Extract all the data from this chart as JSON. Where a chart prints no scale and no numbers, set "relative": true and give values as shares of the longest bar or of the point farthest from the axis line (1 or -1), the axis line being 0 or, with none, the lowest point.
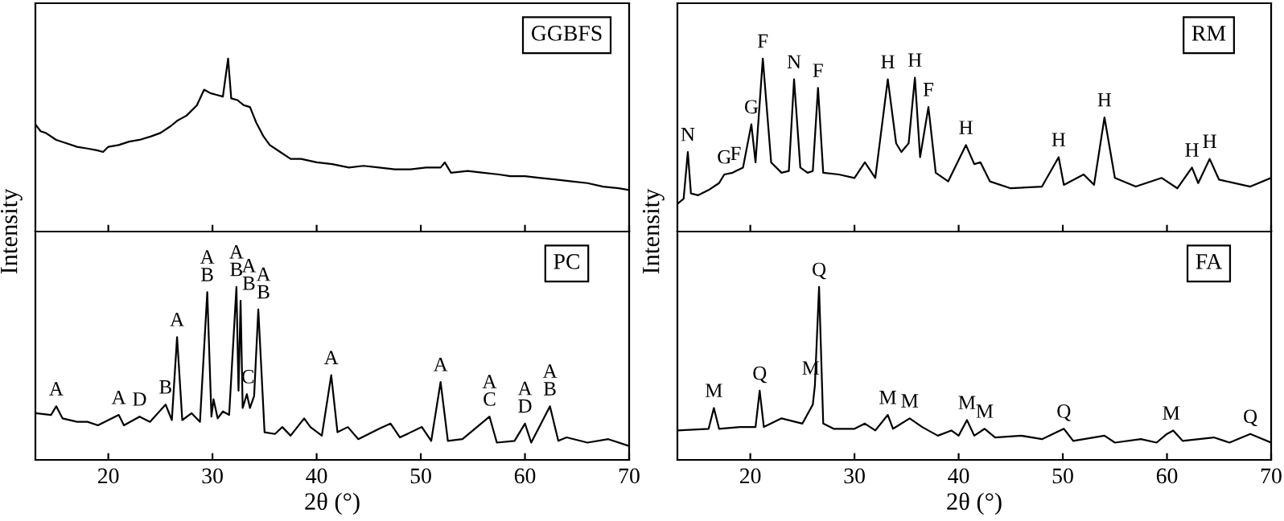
{
  "chart_data": [
    {
      "type": "line",
      "title": "GGBFS",
      "ylabel": "Intensity",
      "relative": true,
      "xlim": [
        13,
        70
      ],
      "xticks": [
        20,
        30,
        40,
        50,
        60,
        70
      ],
      "tick_labels": false,
      "x": [
        13,
        13.5,
        14,
        15,
        16,
        17,
        18,
        18.9,
        19.5,
        20,
        21,
        22,
        23,
        24.1,
        25,
        26,
        26.6,
        27.5,
        28.5,
        29.2,
        29.8,
        30.4,
        31,
        31.5,
        31.8,
        32.4,
        33,
        33.6,
        34.2,
        34.9,
        35.5,
        36.5,
        37.5,
        38.5,
        40,
        41.5,
        43.1,
        44.5,
        46,
        47.5,
        49,
        50.5,
        51.9,
        52.3,
        52.9,
        54.5,
        56,
        57.5,
        58.6,
        60,
        61.5,
        63,
        64.5,
        66,
        67.5,
        69,
        70
      ],
      "series": [
        {
          "color": "#000000",
          "values": [
            0.62,
            0.58,
            0.57,
            0.53,
            0.51,
            0.49,
            0.48,
            0.47,
            0.46,
            0.49,
            0.5,
            0.52,
            0.53,
            0.55,
            0.57,
            0.61,
            0.64,
            0.67,
            0.73,
            0.82,
            0.8,
            0.79,
            0.78,
            1.0,
            0.77,
            0.76,
            0.73,
            0.72,
            0.63,
            0.55,
            0.5,
            0.46,
            0.42,
            0.42,
            0.4,
            0.39,
            0.37,
            0.38,
            0.37,
            0.36,
            0.36,
            0.37,
            0.37,
            0.4,
            0.34,
            0.35,
            0.34,
            0.33,
            0.32,
            0.32,
            0.31,
            0.3,
            0.29,
            0.28,
            0.26,
            0.25,
            0.24
          ]
        }
      ]
    },
    {
      "type": "line",
      "title": "RM",
      "ylabel": "Intensity",
      "relative": true,
      "xlim": [
        13,
        70
      ],
      "xticks": [
        20,
        30,
        40,
        50,
        60,
        70
      ],
      "tick_labels": false,
      "x": [
        13,
        13.6,
        14,
        14.3,
        15,
        16,
        17,
        17.5,
        18.3,
        18.6,
        19.3,
        20.1,
        20.5,
        21.2,
        22,
        23,
        23.7,
        24.2,
        24.8,
        25.5,
        26,
        26.5,
        27,
        28.5,
        30,
        31,
        32,
        33.2,
        34,
        34.5,
        35.2,
        35.8,
        36.3,
        37.1,
        37.8,
        39,
        40.7,
        41.5,
        42.1,
        43,
        45,
        48,
        49.6,
        50.1,
        52,
        53,
        54,
        55,
        57,
        59.5,
        61,
        62.4,
        63,
        64.1,
        65,
        68,
        70
      ],
      "series": [
        {
          "color": "#000000",
          "values": [
            0.16,
            0.19,
            0.46,
            0.22,
            0.21,
            0.24,
            0.28,
            0.33,
            0.34,
            0.35,
            0.37,
            0.62,
            0.4,
            1.0,
            0.4,
            0.34,
            0.35,
            0.88,
            0.37,
            0.34,
            0.35,
            0.83,
            0.34,
            0.33,
            0.31,
            0.4,
            0.31,
            0.88,
            0.51,
            0.46,
            0.51,
            0.89,
            0.43,
            0.72,
            0.34,
            0.29,
            0.5,
            0.39,
            0.4,
            0.29,
            0.25,
            0.26,
            0.43,
            0.27,
            0.33,
            0.27,
            0.66,
            0.31,
            0.26,
            0.31,
            0.25,
            0.37,
            0.28,
            0.42,
            0.3,
            0.26,
            0.31
          ]
        }
      ],
      "annotations": [
        {
          "text": "N",
          "x": 14,
          "y": 0.46
        },
        {
          "text": "G",
          "x": 17.5,
          "y": 0.33
        },
        {
          "text": "F",
          "x": 18.6,
          "y": 0.35
        },
        {
          "text": "G",
          "x": 20.1,
          "y": 0.62
        },
        {
          "text": "F",
          "x": 21.2,
          "y": 1.0
        },
        {
          "text": "N",
          "x": 24.2,
          "y": 0.88
        },
        {
          "text": "F",
          "x": 26.5,
          "y": 0.83
        },
        {
          "text": "H",
          "x": 33.2,
          "y": 0.88
        },
        {
          "text": "H",
          "x": 35.8,
          "y": 0.89
        },
        {
          "text": "F",
          "x": 37.1,
          "y": 0.72
        },
        {
          "text": "H",
          "x": 40.7,
          "y": 0.5
        },
        {
          "text": "H",
          "x": 49.6,
          "y": 0.43
        },
        {
          "text": "H",
          "x": 54,
          "y": 0.66
        },
        {
          "text": "H",
          "x": 62.4,
          "y": 0.37
        },
        {
          "text": "H",
          "x": 64.1,
          "y": 0.42
        }
      ]
    },
    {
      "type": "line",
      "title": "PC",
      "xlabel": "2θ (°)",
      "relative": true,
      "xlim": [
        13,
        70
      ],
      "xticks": [
        20,
        30,
        40,
        50,
        60,
        70
      ],
      "tick_labels": "x",
      "x": [
        13,
        14.5,
        15,
        15.6,
        17,
        18,
        19,
        21,
        21.5,
        23,
        24,
        25.5,
        26.1,
        26.6,
        27.1,
        28,
        28.8,
        29.5,
        29.9,
        30.1,
        30.5,
        31,
        31.6,
        32.3,
        32.5,
        32.7,
        32.9,
        33.3,
        33.6,
        34,
        34.4,
        35,
        36,
        36.7,
        37.5,
        38.8,
        39.4,
        40.5,
        41.4,
        42,
        43,
        44,
        46,
        47.1,
        48,
        50.1,
        51,
        51.9,
        52.6,
        54,
        56.6,
        57.3,
        59,
        60,
        60.6,
        62.4,
        63.2,
        64,
        66,
        68,
        70
      ],
      "series": [
        {
          "color": "#000000",
          "values": [
            0.27,
            0.26,
            0.31,
            0.24,
            0.22,
            0.22,
            0.2,
            0.26,
            0.2,
            0.25,
            0.22,
            0.32,
            0.23,
            0.71,
            0.23,
            0.27,
            0.22,
            0.97,
            0.25,
            0.35,
            0.24,
            0.28,
            0.26,
            1.0,
            0.4,
            0.92,
            0.3,
            0.38,
            0.3,
            0.37,
            0.87,
            0.16,
            0.15,
            0.19,
            0.14,
            0.24,
            0.19,
            0.14,
            0.49,
            0.16,
            0.19,
            0.12,
            0.18,
            0.21,
            0.13,
            0.19,
            0.11,
            0.45,
            0.11,
            0.12,
            0.25,
            0.1,
            0.11,
            0.21,
            0.1,
            0.31,
            0.11,
            0.13,
            0.1,
            0.12,
            0.08
          ]
        }
      ],
      "annotations": [
        {
          "text": "A",
          "x": 15,
          "y": 0.31
        },
        {
          "text": "A",
          "x": 21,
          "y": 0.26
        },
        {
          "text": "D",
          "x": 23,
          "y": 0.25
        },
        {
          "text": "B",
          "x": 25.5,
          "y": 0.32
        },
        {
          "text": "A",
          "x": 26.6,
          "y": 0.71
        },
        {
          "text": "A\nB",
          "x": 29.5,
          "y": 0.97
        },
        {
          "text": "A\nB",
          "x": 32.3,
          "y": 1.0
        },
        {
          "text": "A\nB",
          "x": 33.5,
          "y": 0.92
        },
        {
          "text": "C",
          "x": 33.4,
          "y": 0.38
        },
        {
          "text": "A\nB",
          "x": 34.9,
          "y": 0.87
        },
        {
          "text": "A",
          "x": 41.4,
          "y": 0.49
        },
        {
          "text": "A",
          "x": 51.9,
          "y": 0.45
        },
        {
          "text": "A\nC",
          "x": 56.6,
          "y": 0.25
        },
        {
          "text": "A\nD",
          "x": 60,
          "y": 0.21
        },
        {
          "text": "A\nB",
          "x": 62.4,
          "y": 0.31
        }
      ]
    },
    {
      "type": "line",
      "title": "FA",
      "xlabel": "2θ (°)",
      "relative": true,
      "xlim": [
        13,
        70
      ],
      "xticks": [
        20,
        30,
        40,
        50,
        60,
        70
      ],
      "tick_labels": "x",
      "x": [
        13,
        16,
        16.5,
        17,
        19,
        20.5,
        20.9,
        21.3,
        23,
        25,
        26,
        26.2,
        26.6,
        27,
        28,
        30,
        31,
        32,
        33.2,
        33.7,
        35.3,
        36.5,
        38,
        39.3,
        40,
        40.8,
        41.5,
        42.5,
        43.5,
        46,
        48,
        50.1,
        51,
        54,
        55,
        57.5,
        59,
        60,
        60.6,
        61.5,
        64.5,
        66,
        68,
        70
      ],
      "series": [
        {
          "color": "#000000",
          "values": [
            0.17,
            0.18,
            0.3,
            0.18,
            0.19,
            0.19,
            0.4,
            0.19,
            0.24,
            0.21,
            0.32,
            0.43,
            1.0,
            0.21,
            0.18,
            0.18,
            0.21,
            0.17,
            0.26,
            0.18,
            0.24,
            0.19,
            0.14,
            0.17,
            0.14,
            0.23,
            0.14,
            0.18,
            0.13,
            0.14,
            0.12,
            0.18,
            0.11,
            0.14,
            0.1,
            0.12,
            0.1,
            0.15,
            0.17,
            0.11,
            0.13,
            0.1,
            0.15,
            0.1
          ]
        }
      ],
      "annotations": [
        {
          "text": "M",
          "x": 16.5,
          "y": 0.3
        },
        {
          "text": "Q",
          "x": 20.9,
          "y": 0.4
        },
        {
          "text": "M",
          "x": 25.8,
          "y": 0.43
        },
        {
          "text": "Q",
          "x": 26.6,
          "y": 1.0
        },
        {
          "text": "M",
          "x": 33.2,
          "y": 0.26
        },
        {
          "text": "M",
          "x": 35.3,
          "y": 0.24
        },
        {
          "text": "M",
          "x": 40.8,
          "y": 0.23
        },
        {
          "text": "M",
          "x": 42.5,
          "y": 0.18
        },
        {
          "text": "Q",
          "x": 50.1,
          "y": 0.18
        },
        {
          "text": "M",
          "x": 60.4,
          "y": 0.17
        },
        {
          "text": "Q",
          "x": 68,
          "y": 0.15
        }
      ]
    }
  ]
}
